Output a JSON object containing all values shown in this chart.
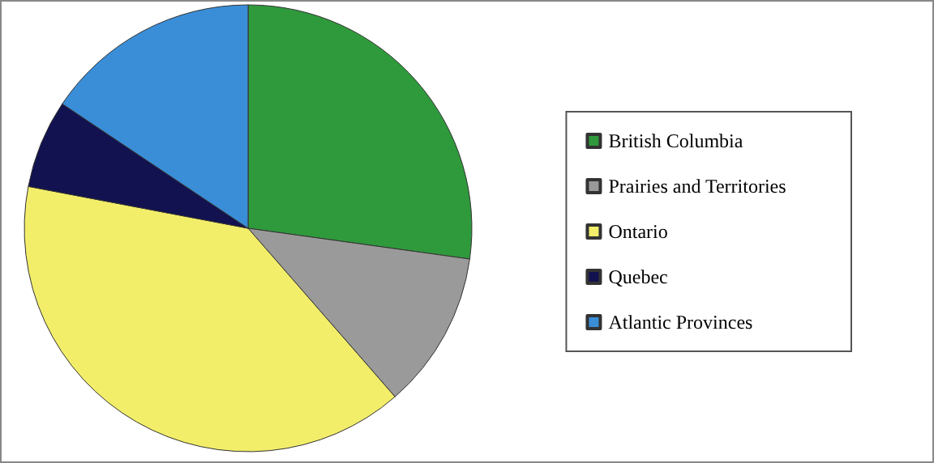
{
  "chart_data": {
    "type": "pie",
    "categories": [
      "British Columbia",
      "Prairies and Territories",
      "Ontario",
      "Quebec",
      "Atlantic Provinces"
    ],
    "values": [
      27.2,
      11.4,
      39.4,
      6.4,
      15.6
    ],
    "colors": [
      "#2f9a3c",
      "#9a9a9a",
      "#f2ee6a",
      "#121250",
      "#3a8ed8"
    ],
    "legend": "right"
  }
}
